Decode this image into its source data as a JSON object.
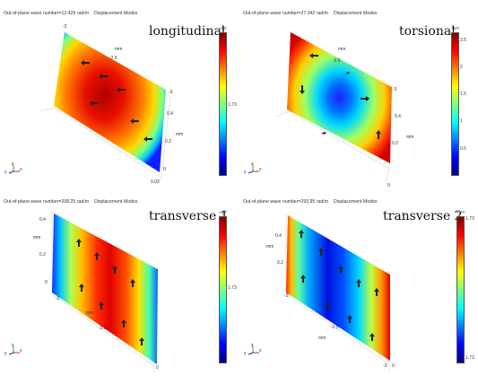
{
  "panels": [
    {
      "header": "Out-of-plane wave number=12.429 rad/m",
      "header_mode": "Displacement Modes",
      "title": "longitudinal",
      "colorbar": {
        "exponent": "×10⁷",
        "ticks": [
          "1.73"
        ]
      },
      "ticks": {
        "a": "-2",
        "b": "-2.5",
        "c": "-3",
        "d": "0.4",
        "e": "0.2",
        "f": "0",
        "g": "0.02"
      },
      "unit": "mm",
      "triad": {
        "y": "y",
        "z": "z",
        "x": "x"
      }
    },
    {
      "header": "Out-of-plane wave number=27.342 rad/m",
      "header_mode": "Displacement Modes",
      "title": "torsional",
      "colorbar": {
        "exponent": "×10⁵",
        "ticks": [
          "2.5",
          "2",
          "1.5",
          "1",
          "0.5"
        ]
      },
      "ticks": {
        "a": "-2",
        "b": "-2.5",
        "c": "-3",
        "d": "0.4",
        "e": "0.2",
        "f": "0"
      },
      "unit": "mm",
      "triad": {
        "y": "y",
        "z": "z",
        "x": "x"
      }
    },
    {
      "header": "Out-of-plane wave number=208.25 rad/m",
      "header_mode": "Displacement Modes",
      "title": "transverse 1",
      "colorbar": {
        "exponent": "×10⁷",
        "ticks": [
          "1.73"
        ]
      },
      "ticks": {
        "a": "0.4",
        "b": "0.2",
        "c": "0",
        "d": "-2",
        "e": "-2.5",
        "f": "0"
      },
      "unit": "mm",
      "triad": {
        "y": "y",
        "z": "z",
        "x": "x"
      }
    },
    {
      "header": "Out-of-plane wave number=293.95 rad/m",
      "header_mode": "Displacement Modes",
      "title": "transverse 2",
      "colorbar": {
        "exponent": "×10⁵",
        "ticks": [
          "1.73",
          "1.73"
        ]
      },
      "ticks": {
        "a": "0.4",
        "b": "0.2",
        "c": "-2",
        "d": "-2.5",
        "e": "-3",
        "f": "0"
      },
      "unit": "mm",
      "triad": {
        "y": "y",
        "z": "z",
        "x": "x"
      }
    }
  ]
}
